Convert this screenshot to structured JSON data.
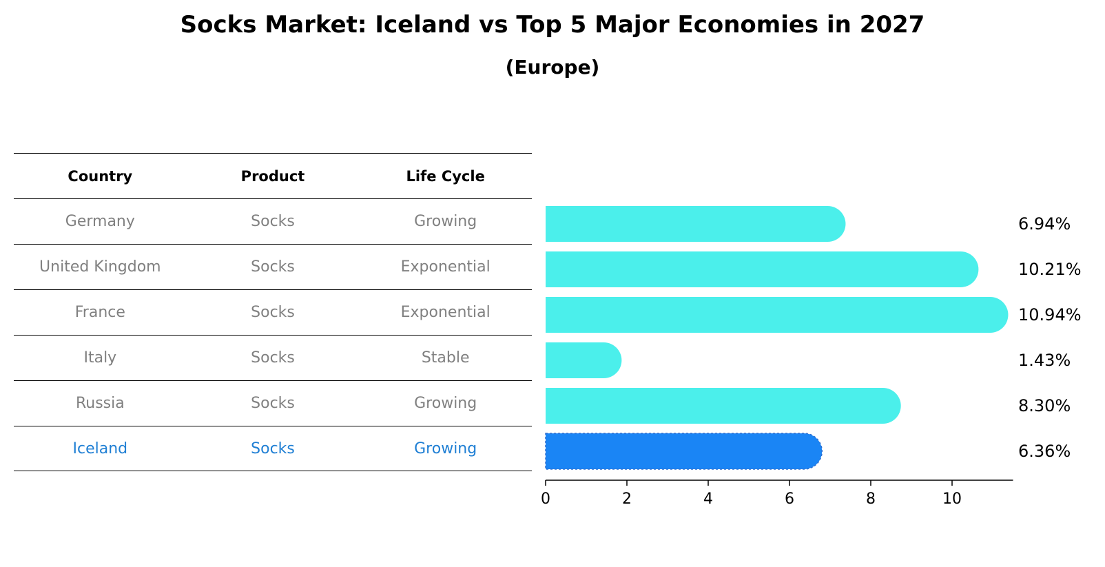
{
  "title": "Socks Market: Iceland vs Top 5 Major Economies in 2027",
  "subtitle": "(Europe)",
  "table": {
    "headers": [
      "Country",
      "Product",
      "Life Cycle"
    ],
    "rows": [
      {
        "country": "Germany",
        "product": "Socks",
        "life_cycle": "Growing"
      },
      {
        "country": "United Kingdom",
        "product": "Socks",
        "life_cycle": "Exponential"
      },
      {
        "country": "France",
        "product": "Socks",
        "life_cycle": "Exponential"
      },
      {
        "country": "Italy",
        "product": "Socks",
        "life_cycle": "Stable"
      },
      {
        "country": "Russia",
        "product": "Socks",
        "life_cycle": "Growing"
      },
      {
        "country": "Iceland",
        "product": "Socks",
        "life_cycle": "Growing"
      }
    ]
  },
  "colors": {
    "bar": "#4befeb",
    "highlight_bar": "#1a85f5",
    "highlight_text": "#1f7fd4",
    "muted_text": "#808080"
  },
  "chart_data": {
    "type": "bar",
    "orientation": "horizontal",
    "categories": [
      "Germany",
      "United Kingdom",
      "France",
      "Italy",
      "Russia",
      "Iceland"
    ],
    "values": [
      6.94,
      10.21,
      10.94,
      1.43,
      8.3,
      6.36
    ],
    "value_labels": [
      "6.94%",
      "10.21%",
      "10.94%",
      "1.43%",
      "8.30%",
      "6.36%"
    ],
    "highlight": "Iceland",
    "xlim": [
      0,
      11.5
    ],
    "xticks": [
      0,
      2,
      4,
      6,
      8,
      10
    ],
    "grid": false
  }
}
